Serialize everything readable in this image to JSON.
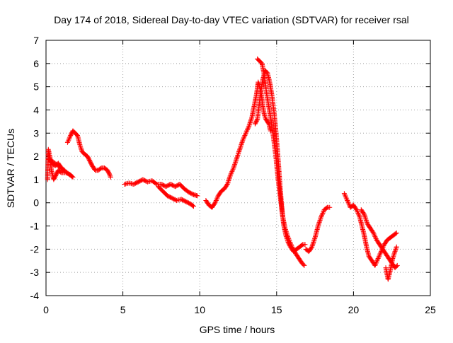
{
  "chart_data": {
    "type": "scatter",
    "title": "Day 174 of 2018, Sidereal Day-to-day VTEC variation (SDTVAR) for receiver rsal",
    "xlabel": "GPS time / hours",
    "ylabel": "SDTVAR / TECUs",
    "xlim": [
      0,
      25
    ],
    "ylim": [
      -4,
      7
    ],
    "xticks": [
      0,
      5,
      10,
      15,
      20,
      25
    ],
    "yticks": [
      -4,
      -3,
      -2,
      -1,
      0,
      1,
      2,
      3,
      4,
      5,
      6,
      7
    ],
    "xtick_labels": [
      "0",
      "5",
      "10",
      "15",
      "20",
      "25"
    ],
    "ytick_labels": [
      "-4",
      "-3",
      "-2",
      "-1",
      "0",
      "1",
      "2",
      "3",
      "4",
      "5",
      "6",
      "7"
    ],
    "grid": true,
    "marker": "+",
    "marker_color": "#ff0000",
    "series": [
      {
        "name": "SDTVAR",
        "segments": [
          [
            [
              0.1,
              1.0
            ],
            [
              0.15,
              2.3
            ],
            [
              0.25,
              2.0
            ],
            [
              0.35,
              1.4
            ],
            [
              0.5,
              1.0
            ],
            [
              0.65,
              1.2
            ],
            [
              0.8,
              1.4
            ],
            [
              1.0,
              1.3
            ],
            [
              1.3,
              1.3
            ],
            [
              1.6,
              1.2
            ],
            [
              1.75,
              1.1
            ],
            [
              0.2,
              1.9
            ],
            [
              0.4,
              1.7
            ],
            [
              0.6,
              1.6
            ],
            [
              0.8,
              1.7
            ],
            [
              1.0,
              1.5
            ],
            [
              1.2,
              1.4
            ]
          ],
          [
            [
              1.4,
              2.6
            ],
            [
              1.6,
              2.9
            ],
            [
              1.75,
              3.1
            ],
            [
              1.9,
              3.0
            ],
            [
              2.05,
              2.9
            ],
            [
              2.2,
              2.5
            ],
            [
              2.35,
              2.2
            ],
            [
              2.5,
              2.1
            ],
            [
              2.7,
              2.0
            ],
            [
              2.85,
              1.8
            ],
            [
              3.0,
              1.6
            ],
            [
              3.2,
              1.4
            ],
            [
              3.4,
              1.4
            ],
            [
              3.6,
              1.5
            ],
            [
              3.8,
              1.5
            ],
            [
              4.0,
              1.4
            ],
            [
              4.15,
              1.2
            ],
            [
              4.2,
              1.1
            ]
          ],
          [
            [
              5.1,
              0.8
            ],
            [
              5.4,
              0.85
            ],
            [
              5.7,
              0.8
            ],
            [
              6.0,
              0.9
            ],
            [
              6.3,
              1.0
            ],
            [
              6.6,
              0.9
            ],
            [
              6.9,
              0.95
            ],
            [
              7.2,
              0.8
            ],
            [
              7.5,
              0.8
            ],
            [
              7.8,
              0.7
            ],
            [
              8.1,
              0.8
            ],
            [
              8.4,
              0.7
            ],
            [
              8.7,
              0.8
            ],
            [
              9.0,
              0.6
            ],
            [
              9.3,
              0.45
            ],
            [
              9.6,
              0.35
            ],
            [
              9.85,
              0.3
            ]
          ],
          [
            [
              7.3,
              0.7
            ],
            [
              7.6,
              0.5
            ],
            [
              7.9,
              0.3
            ],
            [
              8.2,
              0.2
            ],
            [
              8.5,
              0.1
            ],
            [
              8.8,
              0.15
            ],
            [
              9.1,
              0.05
            ],
            [
              9.4,
              -0.05
            ],
            [
              9.6,
              -0.15
            ]
          ],
          [
            [
              10.4,
              0.1
            ],
            [
              10.6,
              -0.1
            ],
            [
              10.8,
              -0.2
            ],
            [
              11.0,
              0.0
            ],
            [
              11.2,
              0.3
            ],
            [
              11.4,
              0.5
            ],
            [
              11.6,
              0.6
            ],
            [
              11.8,
              0.8
            ],
            [
              12.0,
              1.2
            ],
            [
              12.2,
              1.5
            ],
            [
              12.4,
              1.9
            ],
            [
              12.6,
              2.3
            ],
            [
              12.8,
              2.7
            ],
            [
              13.0,
              3.0
            ],
            [
              13.2,
              3.3
            ],
            [
              13.4,
              3.7
            ],
            [
              13.55,
              4.2
            ],
            [
              13.7,
              4.7
            ],
            [
              13.8,
              5.2
            ],
            [
              13.9,
              5.0
            ],
            [
              14.0,
              4.7
            ],
            [
              14.1,
              4.2
            ],
            [
              14.2,
              3.8
            ],
            [
              14.3,
              3.6
            ],
            [
              14.4,
              3.5
            ],
            [
              14.5,
              3.4
            ],
            [
              14.6,
              3.1
            ]
          ],
          [
            [
              13.6,
              3.4
            ],
            [
              13.75,
              3.6
            ],
            [
              13.9,
              4.4
            ],
            [
              14.0,
              4.9
            ],
            [
              14.1,
              5.3
            ],
            [
              14.25,
              5.7
            ],
            [
              14.4,
              5.6
            ],
            [
              14.55,
              5.2
            ],
            [
              14.7,
              4.6
            ],
            [
              14.85,
              3.8
            ],
            [
              14.95,
              3.1
            ],
            [
              15.05,
              2.3
            ],
            [
              15.15,
              1.4
            ],
            [
              15.25,
              0.5
            ],
            [
              15.35,
              -0.3
            ],
            [
              15.45,
              -0.9
            ],
            [
              15.6,
              -1.4
            ],
            [
              15.75,
              -1.7
            ],
            [
              15.9,
              -1.9
            ],
            [
              16.1,
              -2.1
            ],
            [
              16.3,
              -2.0
            ],
            [
              16.5,
              -1.9
            ],
            [
              16.7,
              -1.8
            ],
            [
              16.85,
              -1.8
            ]
          ],
          [
            [
              13.75,
              6.2
            ],
            [
              13.9,
              6.1
            ],
            [
              14.05,
              6.0
            ],
            [
              14.2,
              5.5
            ],
            [
              14.35,
              4.7
            ],
            [
              14.5,
              4.1
            ],
            [
              14.65,
              3.5
            ],
            [
              14.8,
              2.8
            ],
            [
              14.95,
              2.0
            ],
            [
              15.1,
              1.0
            ],
            [
              15.25,
              0.2
            ],
            [
              15.4,
              -0.6
            ],
            [
              15.55,
              -1.1
            ],
            [
              15.75,
              -1.5
            ],
            [
              16.0,
              -1.9
            ],
            [
              16.25,
              -2.2
            ],
            [
              16.45,
              -2.4
            ],
            [
              16.65,
              -2.6
            ],
            [
              16.8,
              -2.7
            ]
          ],
          [
            [
              16.9,
              -2.0
            ],
            [
              17.1,
              -2.1
            ],
            [
              17.3,
              -1.9
            ],
            [
              17.5,
              -1.5
            ],
            [
              17.7,
              -1.0
            ],
            [
              17.9,
              -0.6
            ],
            [
              18.1,
              -0.3
            ],
            [
              18.3,
              -0.2
            ],
            [
              18.45,
              -0.2
            ]
          ],
          [
            [
              19.4,
              0.4
            ],
            [
              19.6,
              0.1
            ],
            [
              19.8,
              -0.2
            ],
            [
              20.0,
              -0.1
            ],
            [
              20.2,
              -0.3
            ],
            [
              20.4,
              -0.6
            ],
            [
              20.55,
              -1.0
            ],
            [
              20.7,
              -1.4
            ],
            [
              20.85,
              -1.9
            ],
            [
              21.0,
              -2.3
            ],
            [
              21.2,
              -2.5
            ],
            [
              21.4,
              -2.7
            ],
            [
              21.6,
              -2.4
            ],
            [
              21.8,
              -2.1
            ],
            [
              22.0,
              -1.8
            ],
            [
              22.2,
              -1.6
            ],
            [
              22.4,
              -1.5
            ],
            [
              22.6,
              -1.4
            ],
            [
              22.8,
              -1.3
            ]
          ],
          [
            [
              20.5,
              -0.3
            ],
            [
              20.7,
              -0.5
            ],
            [
              20.9,
              -0.9
            ],
            [
              21.1,
              -1.1
            ],
            [
              21.3,
              -1.3
            ],
            [
              21.5,
              -1.6
            ],
            [
              21.7,
              -1.8
            ],
            [
              21.9,
              -2.0
            ],
            [
              22.1,
              -2.2
            ],
            [
              22.3,
              -2.4
            ],
            [
              22.5,
              -2.6
            ],
            [
              22.7,
              -2.8
            ],
            [
              22.85,
              -2.7
            ]
          ],
          [
            [
              22.1,
              -2.8
            ],
            [
              22.25,
              -3.3
            ],
            [
              22.4,
              -2.9
            ],
            [
              22.55,
              -2.4
            ],
            [
              22.7,
              -2.1
            ],
            [
              22.8,
              -1.9
            ]
          ]
        ]
      }
    ]
  }
}
